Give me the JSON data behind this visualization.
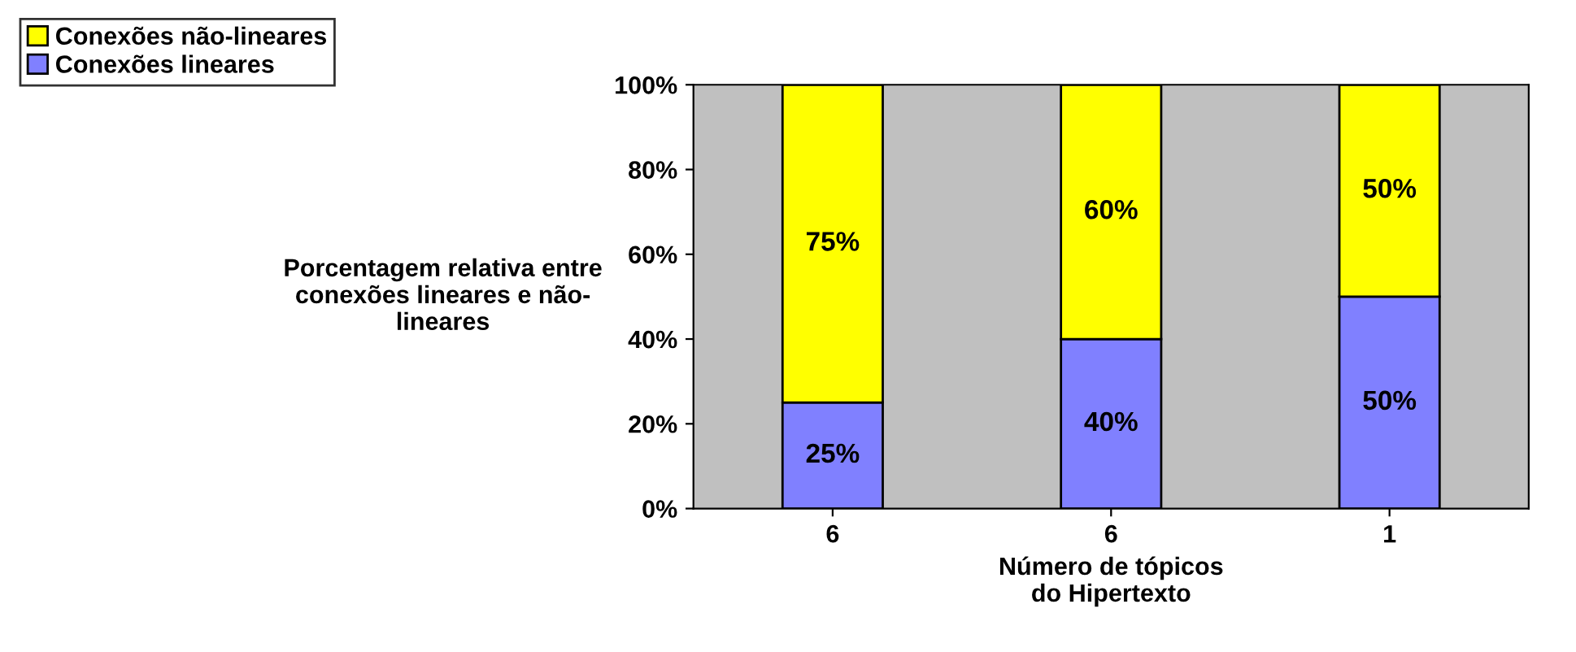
{
  "chart_data": {
    "type": "bar",
    "stacked": true,
    "categories": [
      "6",
      "6",
      "1"
    ],
    "xlabel": "Número de tópicos\ndo Hipertexto",
    "ylabel": "Porcentagem relativa entre\nconexões lineares e não-\nlineares",
    "series": [
      {
        "name": "Conexões lineares",
        "color": "#8080ff",
        "values": [
          25,
          40,
          50
        ],
        "value_labels": [
          "25%",
          "40%",
          "50%"
        ]
      },
      {
        "name": "Conexões não-lineares",
        "color": "#ffff00",
        "values": [
          75,
          60,
          50
        ],
        "value_labels": [
          "75%",
          "60%",
          "50%"
        ]
      }
    ],
    "ylim": [
      0,
      100
    ],
    "yticks": [
      {
        "value": 0,
        "label": "0%"
      },
      {
        "value": 20,
        "label": "20%"
      },
      {
        "value": 40,
        "label": "40%"
      },
      {
        "value": 60,
        "label": "60%"
      },
      {
        "value": 80,
        "label": "80%"
      },
      {
        "value": 100,
        "label": "100%"
      }
    ],
    "grid": false,
    "legend": "top left"
  }
}
